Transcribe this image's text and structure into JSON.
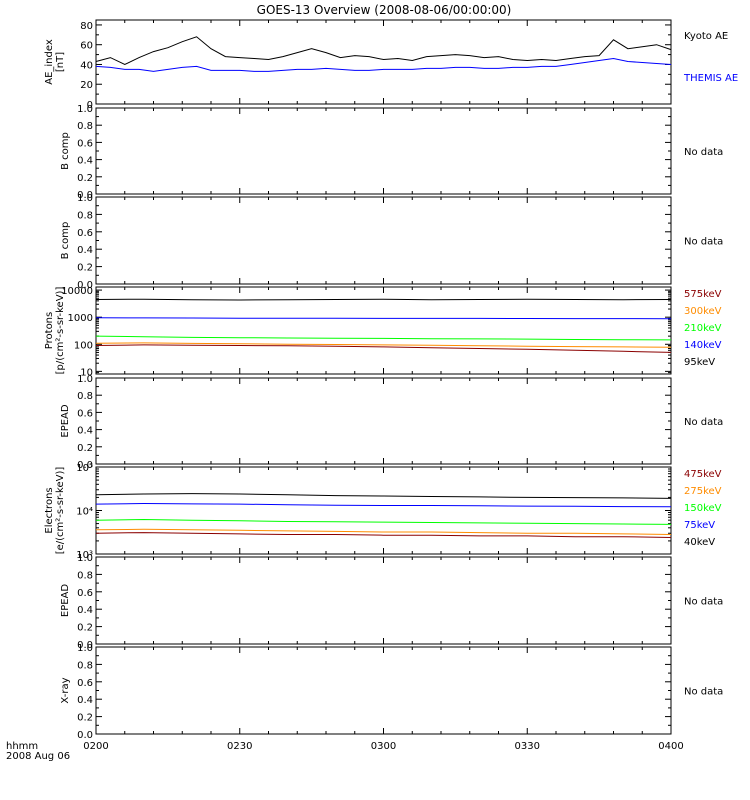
{
  "title": "GOES-13 Overview (2008-08-06/00:00:00)",
  "x_axis": {
    "ticks": [
      "0200",
      "0230",
      "0300",
      "0330",
      "0400"
    ],
    "corner_label_1": "hhmm",
    "corner_label_2": "2008 Aug 06"
  },
  "colors": {
    "black": "#000000",
    "blue": "#0000ff",
    "green": "#00ff00",
    "orange": "#ff8c00",
    "darkred": "#8b0000"
  },
  "chart_data": [
    {
      "type": "line",
      "ylabel": "AE_index\n[nT]",
      "ylim": [
        0,
        85
      ],
      "yticks": [
        "0",
        "20",
        "40",
        "60",
        "80"
      ],
      "x": [
        0,
        3,
        6,
        9,
        12,
        15,
        18,
        21,
        24,
        27,
        30,
        33,
        36,
        39,
        42,
        45,
        48,
        51,
        54,
        57,
        60,
        63,
        66,
        69,
        72,
        75,
        78,
        81,
        84,
        87,
        90,
        93,
        96,
        99,
        102,
        105,
        108,
        111,
        114,
        117,
        120
      ],
      "series": [
        {
          "name": "Kyoto AE",
          "color": "#000000",
          "values": [
            43,
            47,
            40,
            47,
            53,
            57,
            63,
            68,
            56,
            48,
            47,
            46,
            45,
            48,
            52,
            56,
            52,
            47,
            49,
            48,
            45,
            46,
            44,
            48,
            49,
            50,
            49,
            47,
            48,
            45,
            44,
            45,
            44,
            46,
            48,
            49,
            65,
            56,
            58,
            60,
            55
          ]
        },
        {
          "name": "THEMIS AE",
          "color": "#0000ff",
          "values": [
            38,
            37,
            35,
            35,
            33,
            35,
            37,
            38,
            34,
            34,
            34,
            33,
            33,
            34,
            35,
            35,
            36,
            35,
            34,
            34,
            35,
            35,
            35,
            36,
            36,
            37,
            37,
            36,
            36,
            37,
            37,
            38,
            38,
            40,
            42,
            44,
            46,
            43,
            42,
            41,
            40
          ]
        }
      ]
    },
    {
      "type": "line",
      "ylabel": "B comp",
      "ylim": [
        0,
        1
      ],
      "yticks": [
        "0.0",
        "0.2",
        "0.4",
        "0.6",
        "0.8",
        "1.0"
      ],
      "note": "No data"
    },
    {
      "type": "line",
      "ylabel": "B comp",
      "ylim": [
        0,
        1
      ],
      "yticks": [
        "0.0",
        "0.2",
        "0.4",
        "0.6",
        "0.8",
        "1.0"
      ],
      "note": "No data"
    },
    {
      "type": "line",
      "ylabel": "Protons\n[p/(cm²-s-sr-keV)]",
      "yscale": "log",
      "ylim": [
        8,
        13000
      ],
      "yticks": [
        "10",
        "100",
        "1000",
        "10000"
      ],
      "x": [
        0,
        10,
        20,
        30,
        40,
        50,
        60,
        70,
        80,
        90,
        100,
        110,
        120
      ],
      "series": [
        {
          "name": "575keV",
          "color": "#8b0000",
          "values": [
            90,
            95,
            92,
            90,
            88,
            85,
            80,
            75,
            70,
            65,
            60,
            55,
            50
          ]
        },
        {
          "name": "300keV",
          "color": "#ff8c00",
          "values": [
            110,
            112,
            108,
            105,
            100,
            98,
            95,
            92,
            88,
            85,
            82,
            80,
            78
          ]
        },
        {
          "name": "210keV",
          "color": "#00ff00",
          "values": [
            200,
            190,
            180,
            175,
            170,
            168,
            165,
            160,
            158,
            155,
            150,
            148,
            145
          ]
        },
        {
          "name": "140keV",
          "color": "#0000ff",
          "values": [
            950,
            940,
            930,
            920,
            915,
            910,
            905,
            900,
            900,
            895,
            890,
            885,
            880
          ]
        },
        {
          "name": "95keV",
          "color": "#000000",
          "values": [
            4500,
            4600,
            4400,
            4300,
            4400,
            4500,
            4600,
            4400,
            4500,
            4600,
            4500,
            4400,
            4500
          ]
        }
      ]
    },
    {
      "type": "line",
      "ylabel": "EPEAD",
      "ylim": [
        0,
        1
      ],
      "yticks": [
        "0.0",
        "0.2",
        "0.4",
        "0.6",
        "0.8",
        "1.0"
      ],
      "note": "No data"
    },
    {
      "type": "line",
      "ylabel": "Electrons\n[e/(cm²-s-sr-keV)]",
      "yscale": "log",
      "ylim": [
        1000,
        100000
      ],
      "yticks": [
        "10³",
        "10⁴",
        "10⁵"
      ],
      "x": [
        0,
        10,
        20,
        30,
        40,
        50,
        60,
        70,
        80,
        90,
        100,
        110,
        120
      ],
      "series": [
        {
          "name": "475keV",
          "color": "#8b0000",
          "values": [
            3000,
            3100,
            3000,
            2900,
            2800,
            2800,
            2700,
            2700,
            2600,
            2600,
            2500,
            2500,
            2400
          ]
        },
        {
          "name": "275keV",
          "color": "#ff8c00",
          "values": [
            3600,
            3700,
            3600,
            3500,
            3400,
            3300,
            3200,
            3200,
            3100,
            3000,
            3000,
            2900,
            2800
          ]
        },
        {
          "name": "150keV",
          "color": "#00ff00",
          "values": [
            6000,
            6200,
            6000,
            5800,
            5600,
            5500,
            5400,
            5300,
            5200,
            5100,
            5000,
            4900,
            4800
          ]
        },
        {
          "name": "75keV",
          "color": "#0000ff",
          "values": [
            14000,
            14500,
            14200,
            14000,
            13500,
            13200,
            13000,
            13000,
            12800,
            12600,
            12500,
            12300,
            12200
          ]
        },
        {
          "name": "40keV",
          "color": "#000000",
          "values": [
            23000,
            24000,
            24500,
            24000,
            23000,
            22000,
            21500,
            21000,
            20500,
            20000,
            19800,
            19500,
            19000
          ]
        }
      ]
    },
    {
      "type": "line",
      "ylabel": "EPEAD",
      "ylim": [
        0,
        1
      ],
      "yticks": [
        "0.0",
        "0.2",
        "0.4",
        "0.6",
        "0.8",
        "1.0"
      ],
      "note": "No data"
    },
    {
      "type": "line",
      "ylabel": "X-ray",
      "ylim": [
        0,
        1
      ],
      "yticks": [
        "0.0",
        "0.2",
        "0.4",
        "0.6",
        "0.8",
        "1.0"
      ],
      "note": "No data"
    }
  ]
}
